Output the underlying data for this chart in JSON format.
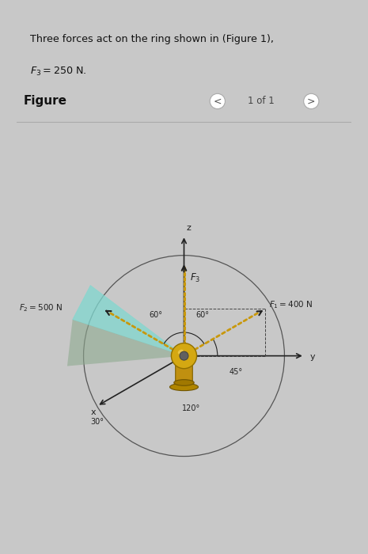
{
  "page_bg": "#c8c8c8",
  "text_box_bg": "#c5d3db",
  "text_box_border": "#b0bec5",
  "text_line1": "Three forces act on the ring shown in (Figure 1),",
  "text_line2": "$F_3 = 250$ N.",
  "figure_label": "Figure",
  "F1_label": "$F_1 = 400$ N",
  "F2_label": "$F_2 = 500$ N",
  "F3_label": "$F_3$",
  "angle_60_left": "60°",
  "angle_60_right": "60°",
  "angle_45": "45°",
  "angle_120": "120°",
  "angle_30": "30°",
  "axis_x": "x",
  "axis_y": "y",
  "axis_z": "z",
  "fig_bg": "#e6e6e6",
  "cyan_color": "#80d8d0",
  "gray_shadow": "#9aab9a",
  "gold_color": "#c8980c",
  "gold_dark": "#a07808",
  "dark_line": "#222222",
  "text_color": "#111111"
}
